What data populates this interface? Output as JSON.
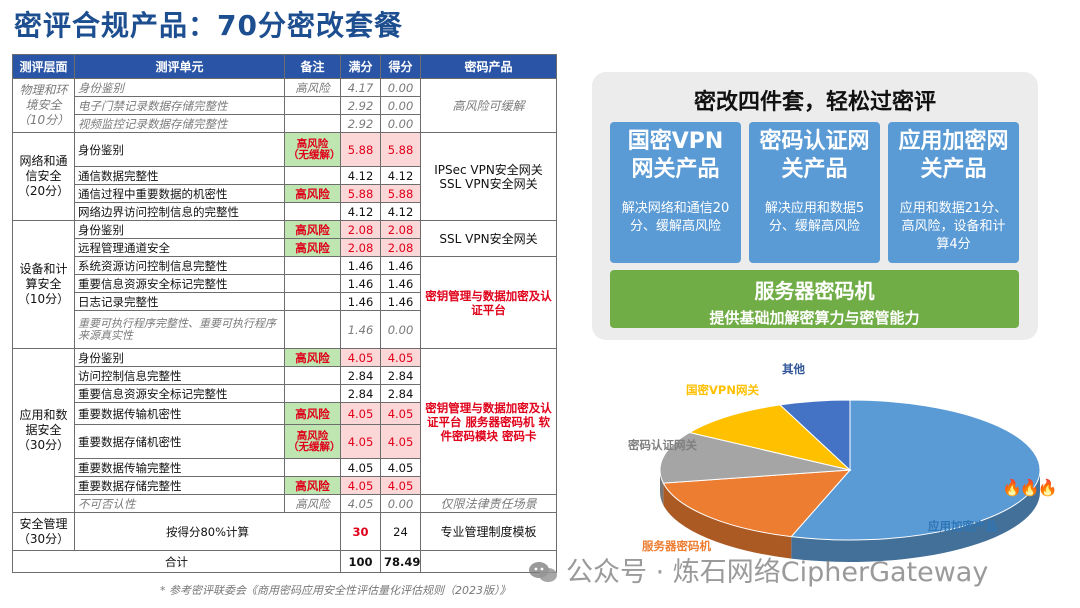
{
  "title": "密评合规产品：70分密改套餐",
  "table": {
    "headers": [
      "测评层面",
      "测评单元",
      "备注",
      "满分",
      "得分",
      "密码产品"
    ],
    "physical": {
      "layer": "物理和环境安全（10分）",
      "product": "高风险可缓解",
      "rows": [
        {
          "unit": "身份鉴别",
          "note": "高风险",
          "full": "4.17",
          "score": "0.00"
        },
        {
          "unit": "电子门禁记录数据存储完整性",
          "note": "",
          "full": "2.92",
          "score": "0.00"
        },
        {
          "unit": "视频监控记录数据存储完整性",
          "note": "",
          "full": "2.92",
          "score": "0.00"
        }
      ]
    },
    "network": {
      "layer": "网络和通信安全（20分）",
      "product": "IPSec VPN安全网关 SSL VPN安全网关",
      "rows": [
        {
          "unit": "身份鉴别",
          "note": "高风险（无缓解）",
          "full": "5.88",
          "score": "5.88"
        },
        {
          "unit": "通信数据完整性",
          "note": "",
          "full": "4.12",
          "score": "4.12"
        },
        {
          "unit": "通信过程中重要数据的机密性",
          "note": "高风险",
          "full": "5.88",
          "score": "5.88"
        },
        {
          "unit": "网络边界访问控制信息的完整性",
          "note": "",
          "full": "4.12",
          "score": "4.12"
        }
      ]
    },
    "device": {
      "layer": "设备和计算安全（10分）",
      "product_a": "SSL VPN安全网关",
      "product_b": "密钥管理与数据加密及认证平台",
      "rows": [
        {
          "unit": "身份鉴别",
          "note": "高风险",
          "full": "2.08",
          "score": "2.08"
        },
        {
          "unit": "远程管理通道安全",
          "note": "高风险",
          "full": "2.08",
          "score": "2.08"
        },
        {
          "unit": "系统资源访问控制信息完整性",
          "note": "",
          "full": "1.46",
          "score": "1.46"
        },
        {
          "unit": "重要信息资源安全标记完整性",
          "note": "",
          "full": "1.46",
          "score": "1.46"
        },
        {
          "unit": "日志记录完整性",
          "note": "",
          "full": "1.46",
          "score": "1.46"
        },
        {
          "unit": "重要可执行程序完整性、重要可执行程序来源真实性",
          "note": "",
          "full": "1.46",
          "score": "0.00"
        }
      ]
    },
    "application": {
      "layer": "应用和数据安全（30分）",
      "product_a": "密钥管理与数据加密及认证平台 服务器密码机 软件密码模块 密码卡",
      "product_b": "仅限法律责任场景",
      "rows": [
        {
          "unit": "身份鉴别",
          "note": "高风险",
          "full": "4.05",
          "score": "4.05"
        },
        {
          "unit": "访问控制信息完整性",
          "note": "",
          "full": "2.84",
          "score": "2.84"
        },
        {
          "unit": "重要信息资源安全标记完整性",
          "note": "",
          "full": "2.84",
          "score": "2.84"
        },
        {
          "unit": "重要数据传输机密性",
          "note": "高风险",
          "full": "4.05",
          "score": "4.05"
        },
        {
          "unit": "重要数据存储机密性",
          "note": "高风险（无缓解）",
          "full": "4.05",
          "score": "4.05"
        },
        {
          "unit": "重要数据传输完整性",
          "note": "",
          "full": "4.05",
          "score": "4.05"
        },
        {
          "unit": "重要数据存储完整性",
          "note": "高风险",
          "full": "4.05",
          "score": "4.05"
        },
        {
          "unit": "不可否认性",
          "note": "高风险",
          "full": "4.05",
          "score": "0.00"
        }
      ]
    },
    "management": {
      "layer": "安全管理（30分）",
      "unit": "按得分80%计算",
      "full": "30",
      "score": "24",
      "product": "专业管理制度模板"
    },
    "total": {
      "label": "合计",
      "full": "100",
      "score": "78.49"
    }
  },
  "footnote": "* 参考密评联委会《商用密码应用安全性评估量化评估规则（2023版）》",
  "panel": {
    "title": "密改四件套，轻松过密评",
    "cards": [
      {
        "title": "国密VPN网关产品",
        "desc": "解决网络和通信20分、缓解高风险"
      },
      {
        "title": "密码认证网关产品",
        "desc": "解决应用和数据5分、缓解高风险"
      },
      {
        "title": "应用加密网关产品",
        "desc": "应用和数据21分、高风险，设备和计算4分"
      }
    ],
    "server": {
      "title": "服务器密码机",
      "desc": "提供基础加解密算力与密管能力"
    }
  },
  "chart_data": {
    "type": "pie",
    "title": "",
    "slices": [
      {
        "label": "应用加密产品",
        "value": 55,
        "color": "#5b9bd5"
      },
      {
        "label": "服务器密码机",
        "value": 17,
        "color": "#ed7d31"
      },
      {
        "label": "密码认证网关",
        "value": 12,
        "color": "#a5a5a5"
      },
      {
        "label": "国密VPN网关",
        "value": 10,
        "color": "#ffc000"
      },
      {
        "label": "其他",
        "value": 6,
        "color": "#4472c4"
      }
    ]
  },
  "watermark": "公众号 · 炼石网络CipherGateway",
  "flames": "🔥🔥🔥"
}
